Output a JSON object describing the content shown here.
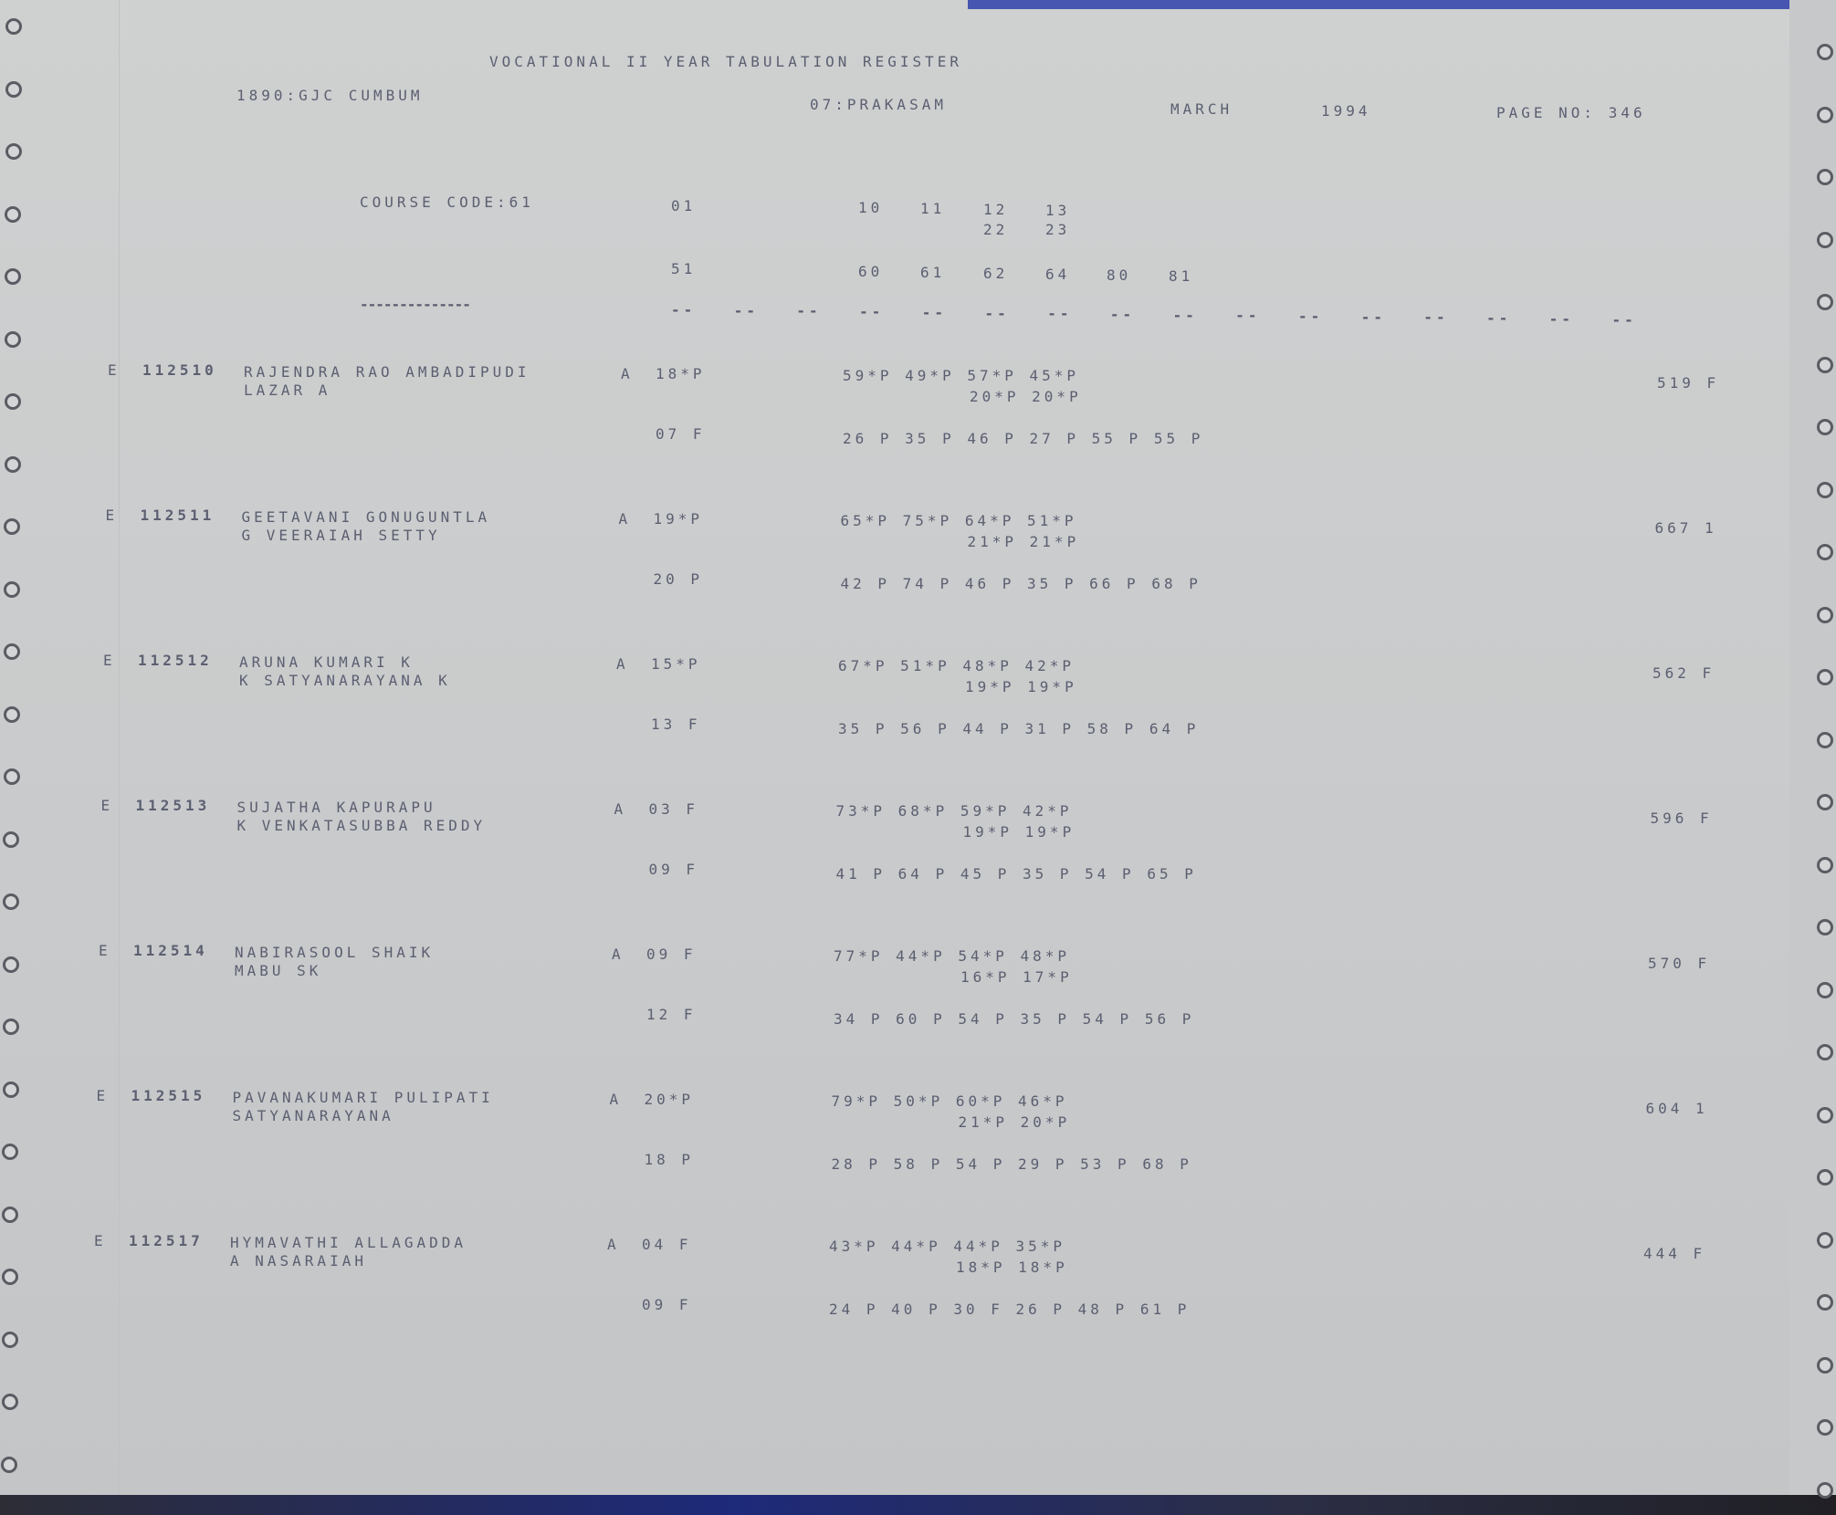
{
  "header": {
    "title": "VOCATIONAL II YEAR TABULATION REGISTER",
    "college": "1890:GJC CUMBUM",
    "district": "07:PRAKASAM",
    "month": "MARCH",
    "year": "1994",
    "page_no": "PAGE NO: 346"
  },
  "columns": {
    "course_code": "COURSE CODE:61",
    "row1": [
      "01",
      "10",
      "11",
      "12",
      "13"
    ],
    "row2": [
      "22",
      "23"
    ],
    "row3": [
      "51",
      "60",
      "61",
      "62",
      "64",
      "80",
      "81"
    ],
    "long_dash": "--------------",
    "short_dash": "--"
  },
  "records": [
    {
      "e": "E",
      "id": "112510",
      "name": "RAJENDRA RAO AMBADIPUDI",
      "father": "LAZAR A",
      "a": "A",
      "grade1": "18*P",
      "marks1": "59*P 49*P 57*P 45*P",
      "marks2": "20*P 20*P",
      "grade2": "07 F",
      "marks3": "26 P 35 P 46 P 27 P 55 P 55 P",
      "total": "519 F"
    },
    {
      "e": "E",
      "id": "112511",
      "name": "GEETAVANI GONUGUNTLA",
      "father": "G VEERAIAH SETTY",
      "a": "A",
      "grade1": "19*P",
      "marks1": "65*P 75*P 64*P 51*P",
      "marks2": "21*P 21*P",
      "grade2": "20 P",
      "marks3": "42 P 74 P 46 P 35 P 66 P 68 P",
      "total": "667 1"
    },
    {
      "e": "E",
      "id": "112512",
      "name": "ARUNA KUMARI K",
      "father": "K SATYANARAYANA K",
      "a": "A",
      "grade1": "15*P",
      "marks1": "67*P 51*P 48*P 42*P",
      "marks2": "19*P 19*P",
      "grade2": "13 F",
      "marks3": "35 P 56 P 44 P 31 P 58 P 64 P",
      "total": "562 F"
    },
    {
      "e": "E",
      "id": "112513",
      "name": "SUJATHA KAPURAPU",
      "father": "K VENKATASUBBA REDDY",
      "a": "A",
      "grade1": "03 F",
      "marks1": "73*P 68*P 59*P 42*P",
      "marks2": "19*P 19*P",
      "grade2": "09 F",
      "marks3": "41 P 64 P 45 P 35 P 54 P 65 P",
      "total": "596 F"
    },
    {
      "e": "E",
      "id": "112514",
      "name": "NABIRASOOL SHAIK",
      "father": "MABU SK",
      "a": "A",
      "grade1": "09 F",
      "marks1": "77*P 44*P 54*P 48*P",
      "marks2": "16*P 17*P",
      "grade2": "12 F",
      "marks3": "34 P 60 P 54 P 35 P 54 P 56 P",
      "total": "570 F"
    },
    {
      "e": "E",
      "id": "112515",
      "name": "PAVANAKUMARI PULIPATI",
      "father": "SATYANARAYANA",
      "a": "A",
      "grade1": "20*P",
      "marks1": "79*P 50*P 60*P 46*P",
      "marks2": "21*P 20*P",
      "grade2": "18 P",
      "marks3": "28 P 58 P 54 P 29 P 53 P 68 P",
      "total": "604 1"
    },
    {
      "e": "E",
      "id": "112517",
      "name": "HYMAVATHI ALLAGADDA",
      "father": "A NASARAIAH",
      "a": "A",
      "grade1": "04 F",
      "marks1": "43*P 44*P 44*P 35*P",
      "marks2": "18*P 18*P",
      "grade2": "09 F",
      "marks3": "24 P 40 P 30 F 26 P 48 P 61 P",
      "total": "444 F"
    }
  ]
}
